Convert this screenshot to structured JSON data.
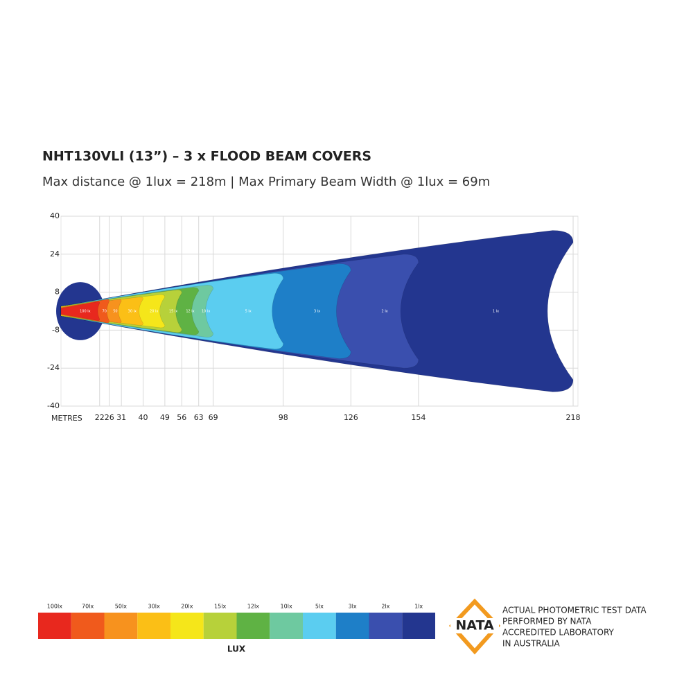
{
  "chart_data": {
    "type": "beam",
    "title": "NHT130VLI (13”) – 3 x FLOOD BEAM COVERS",
    "subtitle": "Max distance @ 1lux = 218m  |  Max Primary  Beam Width @ 1lux = 69m",
    "x_label": "METRES",
    "legend_title": "LUX",
    "xlim": [
      6,
      220
    ],
    "ylim": [
      -40,
      40
    ],
    "xticks": [
      22,
      26,
      31,
      40,
      49,
      56,
      63,
      69,
      98,
      126,
      154,
      218
    ],
    "yticks": [
      40,
      24,
      8,
      -8,
      -24,
      -40
    ],
    "grid": true,
    "series": [
      {
        "name": "100lx",
        "label": "100 lx",
        "color": "#e8281e",
        "reach": 22,
        "half_width": 4
      },
      {
        "name": "70lx",
        "label": "70",
        "color": "#f05a1c",
        "reach": 26,
        "half_width": 5
      },
      {
        "name": "50lx",
        "label": "50",
        "color": "#f7921e",
        "reach": 31,
        "half_width": 5
      },
      {
        "name": "30lx",
        "label": "30 lx",
        "color": "#fbbf16",
        "reach": 40,
        "half_width": 6
      },
      {
        "name": "20lx",
        "label": "20 lx",
        "color": "#f5e61a",
        "reach": 49,
        "half_width": 7
      },
      {
        "name": "15lx",
        "label": "15 lx",
        "color": "#b7d13a",
        "reach": 56,
        "half_width": 9
      },
      {
        "name": "12lx",
        "label": "12 lx",
        "color": "#5fb244",
        "reach": 63,
        "half_width": 10
      },
      {
        "name": "10lx",
        "label": "10 lx",
        "color": "#6ec9a0",
        "reach": 69,
        "half_width": 11
      },
      {
        "name": "5lx",
        "label": "5 lx",
        "color": "#5bcdf0",
        "reach": 98,
        "half_width": 16
      },
      {
        "name": "3lx",
        "label": "3 lx",
        "color": "#1e7fc8",
        "reach": 126,
        "half_width": 20
      },
      {
        "name": "2lx",
        "label": "2 lx",
        "color": "#3a4fae",
        "reach": 154,
        "half_width": 24
      },
      {
        "name": "1lx",
        "label": "1 lx",
        "color": "#23368f",
        "reach": 218,
        "half_width": 34
      }
    ]
  },
  "nata": {
    "logo": "NATA",
    "lines": [
      "ACTUAL PHOTOMETRIC TEST DATA",
      "PERFORMED BY NATA",
      "ACCREDITED LABORATORY",
      "IN AUSTRALIA"
    ]
  }
}
